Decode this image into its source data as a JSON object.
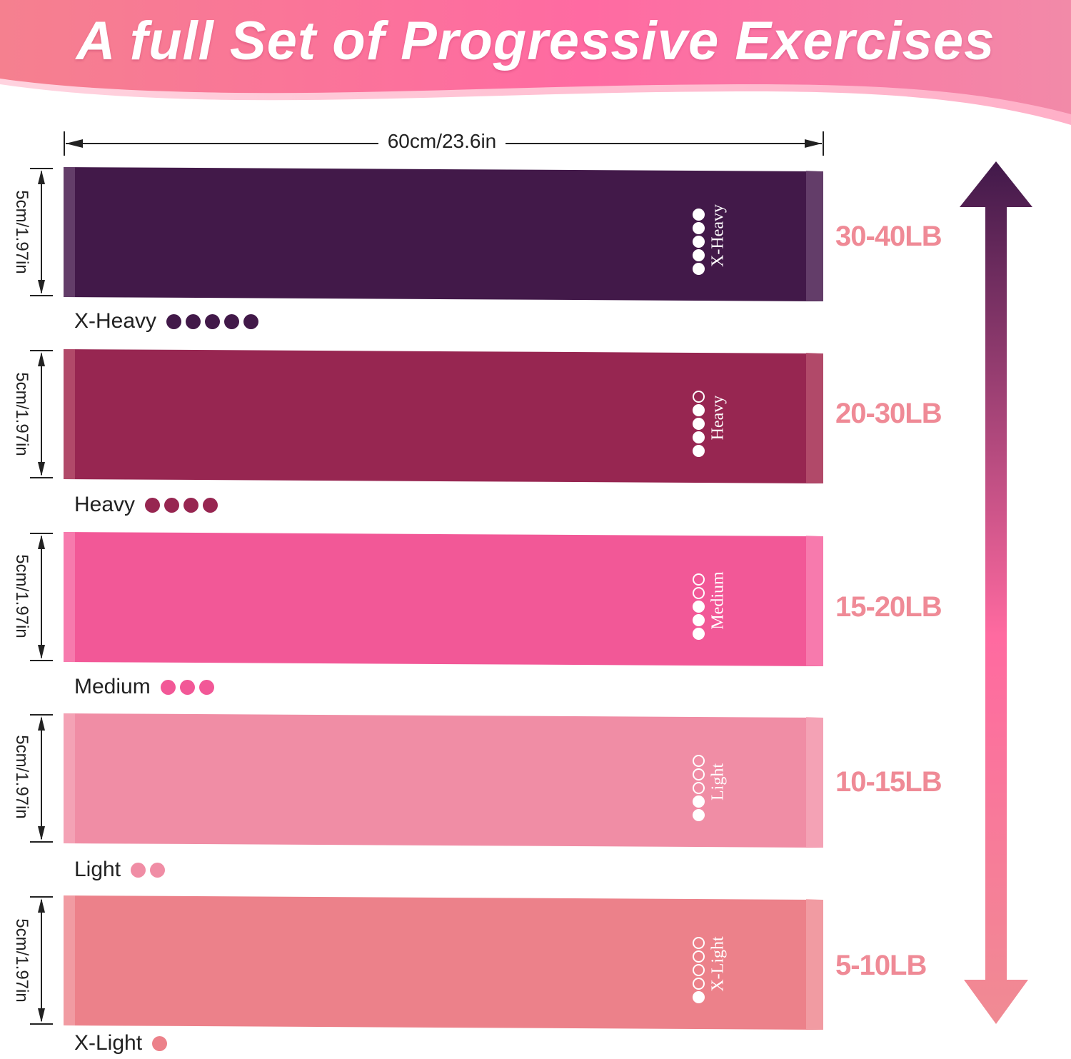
{
  "header": {
    "title": "A full Set of Progressive Exercises",
    "colors": {
      "banner_start": "#f5808f",
      "banner_mid": "#ff6aa2",
      "banner_end": "#f28aa8"
    }
  },
  "dimensions": {
    "width_label": "60cm/23.6in",
    "height_label": "5cm/1.97in"
  },
  "bands": [
    {
      "level": "X-Heavy",
      "print_label": "X-Heavy",
      "filled_dots": 5,
      "total_dots": 5,
      "resistance": "30-40LB",
      "color": "#421949",
      "edge_color": "#6b4672"
    },
    {
      "level": "Heavy",
      "print_label": "Heavy",
      "filled_dots": 4,
      "total_dots": 5,
      "resistance": "20-30LB",
      "color": "#972651",
      "edge_color": "#b8536f"
    },
    {
      "level": "Medium",
      "print_label": "Medium",
      "filled_dots": 3,
      "total_dots": 5,
      "resistance": "15-20LB",
      "color": "#f25897",
      "edge_color": "#f783b3"
    },
    {
      "level": "Light",
      "print_label": "Light",
      "filled_dots": 2,
      "total_dots": 5,
      "resistance": "10-15LB",
      "color": "#f08da5",
      "edge_color": "#f5a7b9"
    },
    {
      "level": "X-Light",
      "print_label": "X-Light",
      "filled_dots": 1,
      "total_dots": 5,
      "resistance": "5-10LB",
      "color": "#ec818a",
      "edge_color": "#f3a1a8"
    }
  ],
  "arrow": {
    "colors": {
      "top": "#41194a",
      "middle": "#ff6aa0",
      "bottom": "#f08b93"
    }
  },
  "resistance_color": "#ef8a96"
}
